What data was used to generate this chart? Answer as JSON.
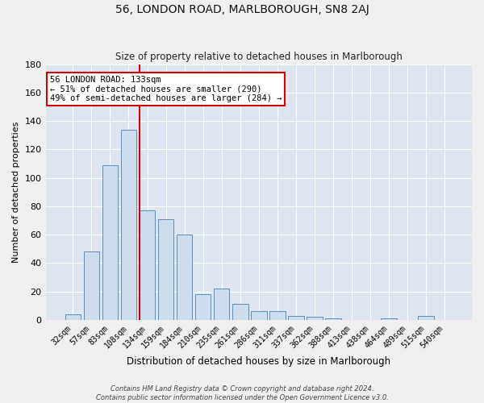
{
  "title": "56, LONDON ROAD, MARLBOROUGH, SN8 2AJ",
  "subtitle": "Size of property relative to detached houses in Marlborough",
  "xlabel": "Distribution of detached houses by size in Marlborough",
  "ylabel": "Number of detached properties",
  "categories": [
    "32sqm",
    "57sqm",
    "83sqm",
    "108sqm",
    "134sqm",
    "159sqm",
    "184sqm",
    "210sqm",
    "235sqm",
    "261sqm",
    "286sqm",
    "311sqm",
    "337sqm",
    "362sqm",
    "388sqm",
    "413sqm",
    "438sqm",
    "464sqm",
    "489sqm",
    "515sqm",
    "540sqm"
  ],
  "values": [
    4,
    48,
    109,
    134,
    77,
    71,
    60,
    18,
    22,
    11,
    6,
    6,
    3,
    2,
    1,
    0,
    0,
    1,
    0,
    3,
    0
  ],
  "bar_color": "#ccddf0",
  "bar_edge_color": "#5b8db8",
  "vline_x_index": 4,
  "vline_color": "#cc0000",
  "annotation_text": "56 LONDON ROAD: 133sqm\n← 51% of detached houses are smaller (290)\n49% of semi-detached houses are larger (284) →",
  "annotation_box_color": "#ffffff",
  "annotation_box_edge": "#cc0000",
  "ylim": [
    0,
    180
  ],
  "yticks": [
    0,
    20,
    40,
    60,
    80,
    100,
    120,
    140,
    160,
    180
  ],
  "bg_color": "#dde6f0",
  "fig_bg_color": "#f0f0f0",
  "footer1": "Contains HM Land Registry data © Crown copyright and database right 2024.",
  "footer2": "Contains public sector information licensed under the Open Government Licence v3.0."
}
